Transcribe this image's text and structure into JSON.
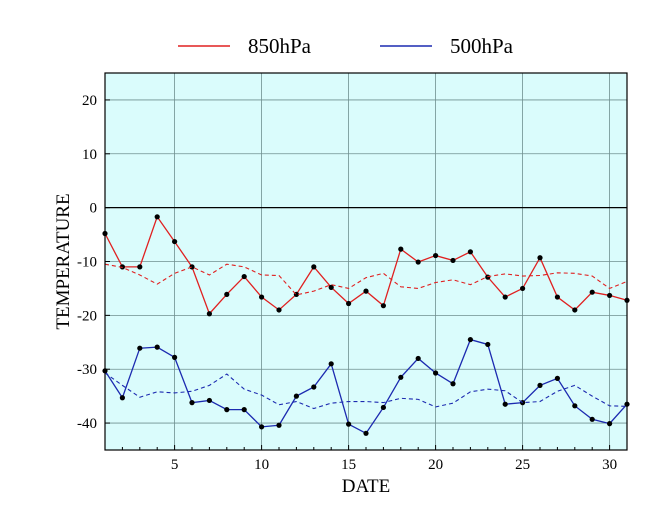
{
  "chart_data": {
    "type": "line",
    "xlabel": "DATE",
    "ylabel": "TEMPERATURE",
    "xlim": [
      1,
      31
    ],
    "ylim": [
      -45,
      25
    ],
    "x_ticks": [
      5,
      10,
      15,
      20,
      25,
      30
    ],
    "y_ticks": [
      -40,
      -30,
      -20,
      -10,
      0,
      10,
      20
    ],
    "grid": true,
    "zero_line": true,
    "background_color": "#dafcfc",
    "legend_position": "top",
    "x": [
      1,
      2,
      3,
      4,
      5,
      6,
      7,
      8,
      9,
      10,
      11,
      12,
      13,
      14,
      15,
      16,
      17,
      18,
      19,
      20,
      21,
      22,
      23,
      24,
      25,
      26,
      27,
      28,
      29,
      30,
      31
    ],
    "series": [
      {
        "name": "850hPa",
        "color": "#e02020",
        "style": "solid",
        "markers": true,
        "values": [
          -4.8,
          -11,
          -11,
          -1.7,
          -6.3,
          -11,
          -19.7,
          -16.1,
          -12.8,
          -16.6,
          -19,
          -16.1,
          -11,
          -14.8,
          -17.8,
          -15.5,
          -18.2,
          -7.7,
          -10.1,
          -8.9,
          -9.8,
          -8.2,
          -12.9,
          -16.6,
          -15,
          -9.3,
          -16.6,
          -19,
          -15.7,
          -16.3,
          -17.2
        ]
      },
      {
        "name": "500hPa",
        "color": "#1c2ab0",
        "style": "solid",
        "markers": true,
        "values": [
          -30.3,
          -35.3,
          -26.1,
          -25.9,
          -27.8,
          -36.2,
          -35.8,
          -37.5,
          -37.5,
          -40.7,
          -40.4,
          -35,
          -33.3,
          -29,
          -40.2,
          -41.9,
          -37.1,
          -31.5,
          -28,
          -30.7,
          -32.7,
          -24.5,
          -25.4,
          -36.5,
          -36.2,
          -33,
          -31.7,
          -36.8,
          -39.3,
          -40.1,
          -36.5
        ]
      },
      {
        "name": "",
        "color": "#e02020",
        "style": "dashed",
        "markers": false,
        "values": [
          -10.5,
          -11.1,
          -12.5,
          -14.2,
          -12.2,
          -11,
          -12.5,
          -10.5,
          -11,
          -12.5,
          -12.6,
          -16.2,
          -15.5,
          -14.3,
          -15,
          -13,
          -12.2,
          -14.7,
          -15,
          -13.9,
          -13.4,
          -14.3,
          -12.8,
          -12.3,
          -12.7,
          -12.6,
          -12.1,
          -12.2,
          -12.7,
          -15,
          -13.7
        ]
      },
      {
        "name": "",
        "color": "#1c2ab0",
        "style": "dashed",
        "markers": false,
        "values": [
          -30.7,
          -33,
          -35.2,
          -34.2,
          -34.4,
          -34.1,
          -33,
          -30.9,
          -33.7,
          -34.8,
          -36.6,
          -36,
          -37.3,
          -36.3,
          -36,
          -36,
          -36.2,
          -35.4,
          -35.6,
          -37,
          -36.3,
          -34.2,
          -33.7,
          -34,
          -36.2,
          -36,
          -34.1,
          -33,
          -35,
          -36.8,
          -36.9
        ]
      }
    ]
  }
}
